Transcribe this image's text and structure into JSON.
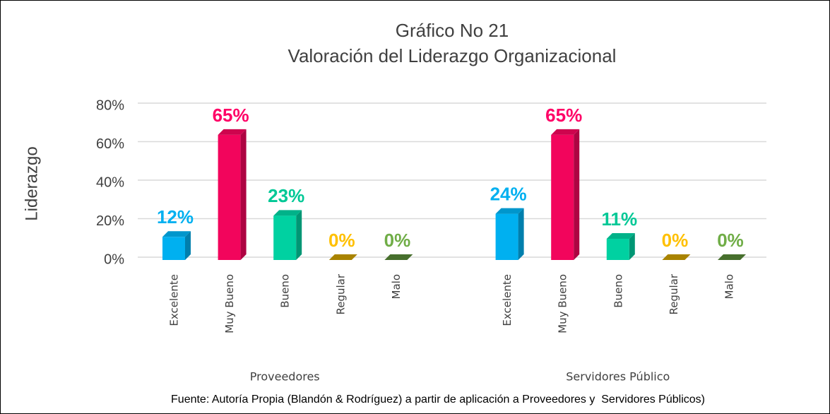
{
  "chart_data": {
    "type": "bar3d_grouped",
    "title": [
      "Gráfico No 21",
      "Valoración del Liderazgo Organizacional"
    ],
    "y_label": "Liderazgo",
    "categories": [
      "Excelente",
      "Muy Bueno",
      "Bueno",
      "Regular",
      "Malo"
    ],
    "colors": [
      "#00b0f0",
      "#f2055c",
      "#00d1a1",
      "#c79a00",
      "#548235"
    ],
    "label_colors": [
      "#00b0f0",
      "#ff0066",
      "#00c896",
      "#ffc000",
      "#70ad47"
    ],
    "groups": [
      {
        "name": "Proveedores",
        "values": [
          12,
          65,
          23,
          0,
          0
        ],
        "value_labels": [
          "12%",
          "65%",
          "23%",
          "0%",
          "0%"
        ]
      },
      {
        "name": "Servidores Público",
        "values": [
          24,
          65,
          11,
          0,
          0
        ],
        "value_labels": [
          "24%",
          "65%",
          "11%",
          "0%",
          "0%"
        ]
      }
    ],
    "ylim": [
      0,
      80
    ],
    "yticks": [
      {
        "value": 0,
        "label": "0%"
      },
      {
        "value": 20,
        "label": "20%"
      },
      {
        "value": 40,
        "label": "40%"
      },
      {
        "value": 60,
        "label": "60%"
      },
      {
        "value": 80,
        "label": "80%"
      }
    ],
    "grid": true,
    "footnote": "Fuente: Autoría Propia (Blandón & Rodríguez) a partir de aplicación a Proveedores y  Servidores Públicos)"
  }
}
